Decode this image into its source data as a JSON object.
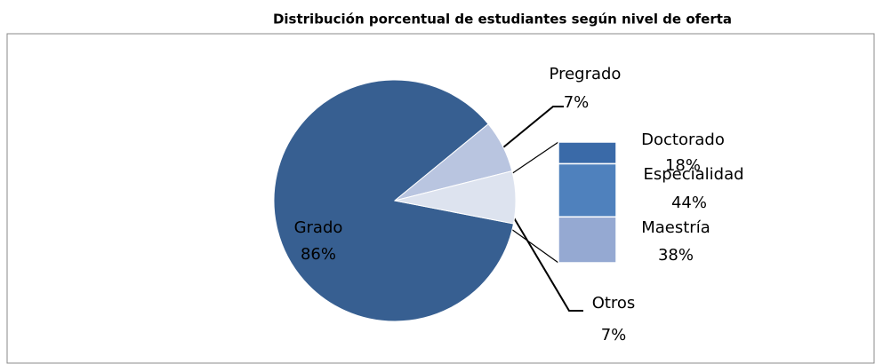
{
  "chart_data": {
    "type": "pie",
    "title": "Distribución porcentual de estudiantes según nivel de oferta",
    "categories": [
      "Grado",
      "Pregrado",
      "Otros"
    ],
    "values": [
      86,
      7,
      7
    ],
    "value_labels": [
      "86%",
      "7%",
      "7%"
    ],
    "colors": [
      "#375f91",
      "#b9c5e0",
      "#dde3ef"
    ],
    "breakdown": {
      "categories": [
        "Doctorado",
        "Especialidad",
        "Maestría"
      ],
      "values": [
        18,
        44,
        38
      ],
      "value_labels": [
        "18%",
        "44%",
        "38%"
      ],
      "colors": [
        "#3a6aa8",
        "#4f81bd",
        "#95a9d2"
      ]
    }
  }
}
